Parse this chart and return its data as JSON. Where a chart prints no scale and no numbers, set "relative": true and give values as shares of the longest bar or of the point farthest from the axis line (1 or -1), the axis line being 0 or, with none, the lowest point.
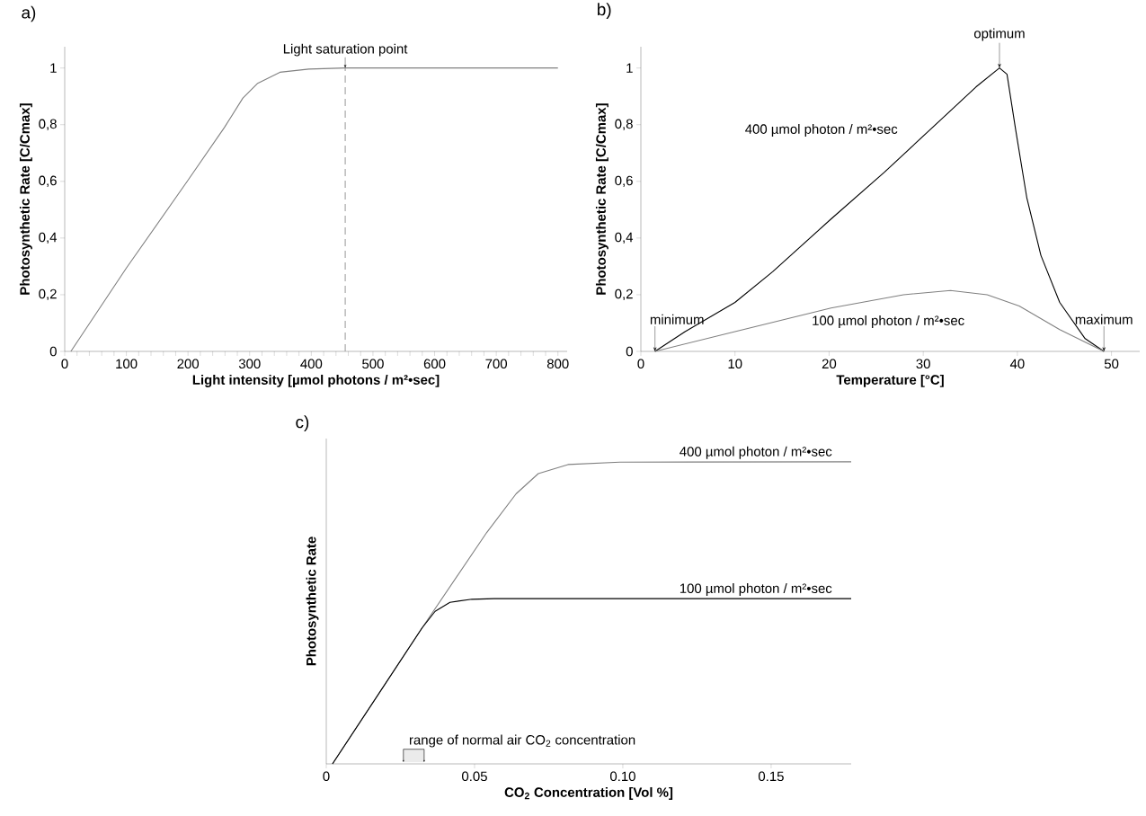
{
  "chart_data": [
    {
      "type": "line",
      "title": "a)",
      "xlabel": "Light intensity [µmol photons / m²•sec]",
      "ylabel": "Photosynthetic Rate [C/Cmax]",
      "xlim": [
        0,
        815
      ],
      "ylim": [
        0,
        1.075
      ],
      "xticks": [
        0,
        {
          "value": 20,
          "label": null
        },
        {
          "value": 40,
          "label": null
        },
        {
          "value": 60,
          "label": null
        },
        {
          "value": 80,
          "label": null
        },
        100,
        {
          "value": 120,
          "label": null
        },
        {
          "value": 140,
          "label": null
        },
        {
          "value": 160,
          "label": null
        },
        {
          "value": 180,
          "label": null
        },
        200,
        {
          "value": 220,
          "label": null
        },
        {
          "value": 240,
          "label": null
        },
        {
          "value": 260,
          "label": null
        },
        {
          "value": 280,
          "label": null
        },
        300,
        {
          "value": 320,
          "label": null
        },
        {
          "value": 340,
          "label": null
        },
        {
          "value": 360,
          "label": null
        },
        {
          "value": 380,
          "label": null
        },
        400,
        {
          "value": 420,
          "label": null
        },
        {
          "value": 440,
          "label": null
        },
        {
          "value": 460,
          "label": null
        },
        {
          "value": 480,
          "label": null
        },
        500,
        {
          "value": 520,
          "label": null
        },
        {
          "value": 540,
          "label": null
        },
        {
          "value": 560,
          "label": null
        },
        {
          "value": 580,
          "label": null
        },
        600,
        {
          "value": 620,
          "label": null
        },
        {
          "value": 640,
          "label": null
        },
        {
          "value": 660,
          "label": null
        },
        {
          "value": 680,
          "label": null
        },
        700,
        {
          "value": 720,
          "label": null
        },
        {
          "value": 740,
          "label": null
        },
        {
          "value": 760,
          "label": null
        },
        {
          "value": 780,
          "label": null
        },
        800
      ],
      "yticks": [
        0,
        {
          "value": 0.2,
          "label": "0,2"
        },
        {
          "value": 0.4,
          "label": "0,4"
        },
        {
          "value": 0.6,
          "label": "0,6"
        },
        {
          "value": 0.8,
          "label": "0,8"
        },
        1
      ],
      "x": [
        10,
        100,
        200,
        259,
        289,
        313,
        349,
        396,
        455,
        800
      ],
      "series": [
        {
          "color": "#808080",
          "values": [
            0,
            0.294,
            0.604,
            0.79,
            0.894,
            0.946,
            0.985,
            0.996,
            1,
            1
          ]
        }
      ],
      "ref_lines": [
        {
          "axis": "x",
          "value": 455,
          "label": "Light saturation point",
          "color": "#a0a0a0",
          "line_style": "dashed"
        }
      ]
    },
    {
      "type": "line",
      "title": "b)",
      "xlabel": "Temperature [°C]",
      "ylabel": "Photosynthetic Rate [C/Cmax]",
      "xlim": [
        0,
        53
      ],
      "ylim": [
        0,
        1.075
      ],
      "xticks": [
        0,
        10,
        20,
        30,
        40,
        50
      ],
      "yticks": [
        0,
        {
          "value": 0.2,
          "label": "0,2"
        },
        {
          "value": 0.4,
          "label": "0,4"
        },
        {
          "value": 0.6,
          "label": "0,6"
        },
        {
          "value": 0.8,
          "label": "0,8"
        },
        1
      ],
      "series": [
        {
          "name": "400 µmol photon / m²•sec",
          "color": "#000000",
          "x": [
            1.5,
            4.7,
            10,
            14,
            20.2,
            25.9,
            31.7,
            35.6,
            38.1,
            38.9,
            39.8,
            41,
            42.5,
            44.5,
            47.2,
            49.2
          ],
          "values": [
            0,
            0.07,
            0.173,
            0.281,
            0.467,
            0.633,
            0.812,
            0.933,
            1,
            0.978,
            0.786,
            0.543,
            0.339,
            0.173,
            0.045,
            0
          ]
        },
        {
          "name": "100 µmol photon / m²•sec",
          "color": "#808080",
          "x": [
            1.5,
            10,
            20.2,
            27.9,
            32.9,
            36.8,
            40.2,
            44.5,
            49.2
          ],
          "values": [
            0,
            0.07,
            0.153,
            0.2,
            0.215,
            0.2,
            0.16,
            0.077,
            0
          ]
        }
      ],
      "annotations": [
        {
          "text": "optimum",
          "x": 38.1,
          "y": 1
        },
        {
          "text": "minimum",
          "x": 1.5,
          "y": 0
        },
        {
          "text": "maximum",
          "x": 49.2,
          "y": 0
        }
      ]
    },
    {
      "type": "line",
      "title": "c)",
      "xlabel": "CO$_{2}$ Concentration [Vol %]",
      "ylabel": "Photosynthetic Rate",
      "relative": true,
      "tick_labels": "x",
      "xlim": [
        0,
        0.177
      ],
      "xticks": [
        0,
        0.05,
        {
          "value": 0.1,
          "label": "0.10"
        },
        0.15
      ],
      "series": [
        {
          "name": "400 µmol photon / m²•sec",
          "color": "#808080",
          "x": [
            0.0021,
            0.0323,
            0.0541,
            0.064,
            0.0715,
            0.0815,
            0.099,
            0.177
          ],
          "values": [
            0,
            0.45,
            0.766,
            0.894,
            0.961,
            0.991,
            0.999,
            1
          ]
        },
        {
          "name": "100 µmol photon / m²•sec",
          "color": "#000000",
          "x": [
            0.0021,
            0.0323,
            0.0367,
            0.0417,
            0.0491,
            0.0566,
            0.177
          ],
          "values": [
            0,
            0.45,
            0.505,
            0.535,
            0.545,
            0.547,
            0.547
          ]
        }
      ],
      "bands": [
        {
          "axis": "x",
          "from": 0.026,
          "to": 0.033,
          "label": "range of normal air CO$_{2}$ concentration"
        }
      ]
    }
  ]
}
